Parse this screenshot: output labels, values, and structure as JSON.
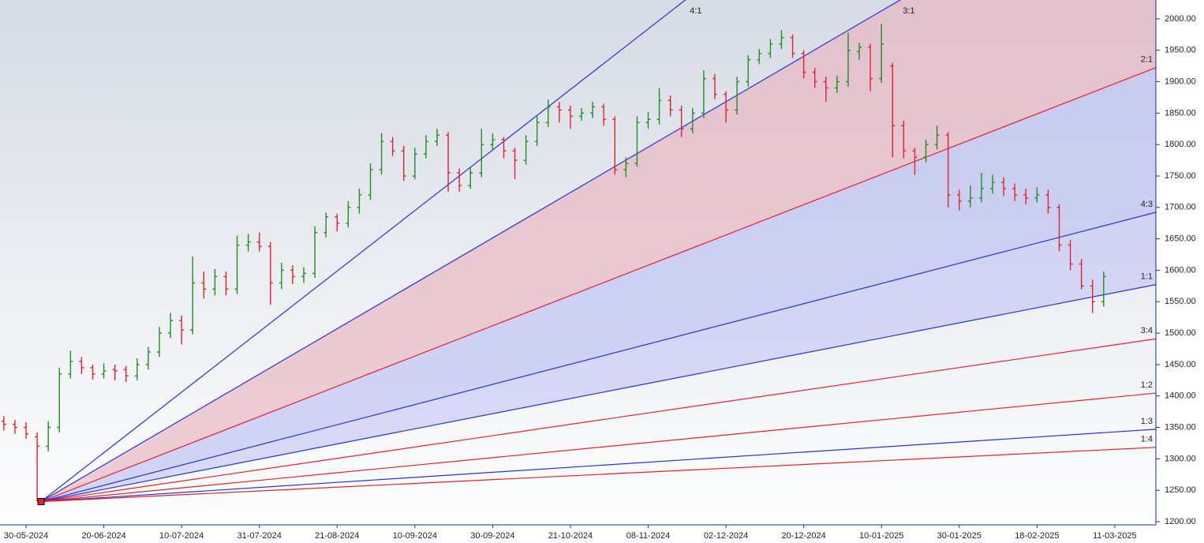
{
  "chart_data": {
    "type": "ohlc",
    "x": [
      -4,
      -2,
      0,
      2,
      4,
      6,
      8,
      10,
      12,
      14,
      16,
      18,
      20,
      22,
      24,
      26,
      28,
      30,
      32,
      34,
      36,
      38,
      40,
      42,
      44,
      46,
      48,
      50,
      52,
      54,
      56,
      58,
      60,
      62,
      64,
      66,
      68,
      70,
      72,
      74,
      76,
      78,
      80,
      82,
      84,
      86,
      88,
      90,
      92,
      94,
      96,
      98,
      100,
      102,
      104,
      106,
      108,
      110,
      112,
      114,
      116,
      118,
      120,
      122,
      124,
      126,
      128,
      130,
      132,
      134,
      136,
      138,
      140,
      142,
      144,
      146,
      148,
      150,
      152,
      154,
      156,
      158,
      160,
      162,
      164,
      166,
      168,
      170,
      172,
      174,
      176,
      178,
      180,
      182,
      184,
      186,
      188,
      190,
      192,
      194
    ],
    "open": [
      1360,
      1355,
      1350,
      1335,
      1320,
      1350,
      1435,
      1455,
      1445,
      1435,
      1442,
      1442,
      1432,
      1450,
      1470,
      1500,
      1520,
      1505,
      1580,
      1570,
      1590,
      1570,
      1640,
      1645,
      1638,
      1580,
      1600,
      1590,
      1595,
      1660,
      1685,
      1675,
      1700,
      1720,
      1760,
      1805,
      1790,
      1750,
      1785,
      1805,
      1815,
      1755,
      1735,
      1755,
      1800,
      1808,
      1790,
      1775,
      1805,
      1835,
      1860,
      1855,
      1845,
      1850,
      1860,
      1840,
      1760,
      1770,
      1835,
      1840,
      1870,
      1855,
      1825,
      1850,
      1905,
      1880,
      1855,
      1900,
      1935,
      1945,
      1960,
      1970,
      1945,
      1915,
      1900,
      1890,
      1900,
      1948,
      1955,
      1905,
      1925,
      1830,
      1790,
      1780,
      1800,
      1815,
      1720,
      1710,
      1715,
      1730,
      1740,
      1730,
      1720,
      1715,
      1720,
      1700,
      1640,
      1610,
      1575,
      1550
    ],
    "high": [
      1368,
      1362,
      1358,
      1342,
      1360,
      1445,
      1472,
      1462,
      1450,
      1452,
      1450,
      1448,
      1460,
      1478,
      1510,
      1532,
      1528,
      1622,
      1598,
      1602,
      1598,
      1655,
      1658,
      1660,
      1645,
      1612,
      1608,
      1605,
      1670,
      1692,
      1690,
      1710,
      1730,
      1770,
      1818,
      1812,
      1798,
      1795,
      1815,
      1825,
      1820,
      1762,
      1765,
      1825,
      1818,
      1812,
      1795,
      1815,
      1845,
      1872,
      1868,
      1862,
      1858,
      1868,
      1865,
      1845,
      1780,
      1845,
      1852,
      1890,
      1878,
      1862,
      1858,
      1918,
      1912,
      1885,
      1908,
      1942,
      1952,
      1968,
      1982,
      1975,
      1950,
      1922,
      1908,
      1910,
      1978,
      1962,
      1960,
      1992,
      1930,
      1838,
      1795,
      1808,
      1830,
      1820,
      1728,
      1735,
      1755,
      1752,
      1748,
      1738,
      1730,
      1732,
      1728,
      1705,
      1648,
      1618,
      1585,
      1598
    ],
    "low": [
      1345,
      1340,
      1332,
      1232,
      1312,
      1342,
      1428,
      1435,
      1426,
      1428,
      1425,
      1422,
      1425,
      1442,
      1462,
      1492,
      1482,
      1498,
      1555,
      1560,
      1560,
      1562,
      1630,
      1630,
      1545,
      1570,
      1578,
      1580,
      1588,
      1652,
      1662,
      1668,
      1690,
      1712,
      1752,
      1782,
      1742,
      1745,
      1778,
      1798,
      1725,
      1725,
      1730,
      1748,
      1790,
      1778,
      1745,
      1768,
      1798,
      1828,
      1835,
      1825,
      1838,
      1842,
      1830,
      1752,
      1748,
      1765,
      1825,
      1832,
      1845,
      1812,
      1818,
      1842,
      1872,
      1835,
      1848,
      1892,
      1928,
      1938,
      1952,
      1938,
      1905,
      1890,
      1868,
      1882,
      1892,
      1935,
      1885,
      1898,
      1780,
      1778,
      1752,
      1772,
      1792,
      1700,
      1695,
      1700,
      1708,
      1722,
      1718,
      1710,
      1705,
      1708,
      1690,
      1630,
      1600,
      1570,
      1532,
      1542
    ],
    "close": [
      1355,
      1350,
      1340,
      1320,
      1350,
      1435,
      1455,
      1445,
      1435,
      1440,
      1440,
      1432,
      1450,
      1470,
      1500,
      1520,
      1505,
      1580,
      1570,
      1590,
      1570,
      1640,
      1645,
      1638,
      1580,
      1600,
      1590,
      1595,
      1660,
      1685,
      1675,
      1700,
      1720,
      1760,
      1805,
      1790,
      1750,
      1785,
      1805,
      1815,
      1755,
      1735,
      1755,
      1800,
      1808,
      1790,
      1775,
      1805,
      1835,
      1860,
      1855,
      1845,
      1850,
      1860,
      1840,
      1760,
      1770,
      1835,
      1840,
      1870,
      1855,
      1825,
      1850,
      1905,
      1880,
      1855,
      1900,
      1935,
      1945,
      1960,
      1970,
      1945,
      1915,
      1900,
      1890,
      1900,
      1950,
      1955,
      1905,
      1960,
      1830,
      1790,
      1780,
      1800,
      1815,
      1720,
      1710,
      1715,
      1730,
      1740,
      1730,
      1720,
      1715,
      1720,
      1700,
      1640,
      1610,
      1575,
      1550,
      1590
    ],
    "up_color": "#1f8f1f",
    "down_color": "#e8202a",
    "xlim": [
      -4.69,
      203.4
    ],
    "xticks": [
      {
        "value": 0,
        "label": "30-05-2024"
      },
      {
        "value": 14,
        "label": "20-06-2024"
      },
      {
        "value": 28,
        "label": "10-07-2024"
      },
      {
        "value": 42,
        "label": "31-07-2024"
      },
      {
        "value": 56,
        "label": "21-08-2024"
      },
      {
        "value": 70,
        "label": "10-09-2024"
      },
      {
        "value": 84,
        "label": "30-09-2024"
      },
      {
        "value": 98,
        "label": "21-10-2024"
      },
      {
        "value": 112,
        "label": "08-11-2024"
      },
      {
        "value": 126,
        "label": "02-12-2024"
      },
      {
        "value": 140,
        "label": "20-12-2024"
      },
      {
        "value": 154,
        "label": "10-01-2025"
      },
      {
        "value": 168,
        "label": "30-01-2025"
      },
      {
        "value": 182,
        "label": "18-02-2025"
      },
      {
        "value": 196,
        "label": "11-03-2025"
      }
    ],
    "ylim": [
      1195,
      2030
    ],
    "yticks": [
      {
        "value": 1200,
        "label": "1200.00"
      },
      {
        "value": 1250,
        "label": "1250.00"
      },
      {
        "value": 1300,
        "label": "1300.00"
      },
      {
        "value": 1350,
        "label": "1350.00"
      },
      {
        "value": 1400,
        "label": "1400.00"
      },
      {
        "value": 1450,
        "label": "1450.00"
      },
      {
        "value": 1500,
        "label": "1500.00"
      },
      {
        "value": 1550,
        "label": "1550.00"
      },
      {
        "value": 1600,
        "label": "1600.00"
      },
      {
        "value": 1650,
        "label": "1650.00"
      },
      {
        "value": 1700,
        "label": "1700.00"
      },
      {
        "value": 1750,
        "label": "1750.00"
      },
      {
        "value": 1800,
        "label": "1800.00"
      },
      {
        "value": 1850,
        "label": "1850.00"
      },
      {
        "value": 1900,
        "label": "1900.00"
      },
      {
        "value": 1950,
        "label": "1950.00"
      },
      {
        "value": 2000,
        "label": "2000.00"
      }
    ],
    "gann": {
      "origin_x": 2.7,
      "origin_price": 1232,
      "unit": 1.72,
      "lines": [
        {
          "label": "4:1",
          "factor": 4,
          "color": "#2233dd"
        },
        {
          "label": "3:1",
          "factor": 3,
          "color": "#2233dd",
          "fill": "#e8b4c0"
        },
        {
          "label": "2:1",
          "factor": 2,
          "color": "#e8202a",
          "fill": "#bcc0f2"
        },
        {
          "label": "4:3",
          "factor": 1.3333,
          "color": "#2233dd",
          "fill": "#c4c8f4"
        },
        {
          "label": "1:1",
          "factor": 1,
          "color": "#2233dd"
        },
        {
          "label": "3:4",
          "factor": 0.75,
          "color": "#e8202a"
        },
        {
          "label": "1:2",
          "factor": 0.5,
          "color": "#e8202a"
        },
        {
          "label": "1:3",
          "factor": 0.3333,
          "color": "#2233dd"
        },
        {
          "label": "1:4",
          "factor": 0.25,
          "color": "#e8202a"
        }
      ]
    }
  }
}
